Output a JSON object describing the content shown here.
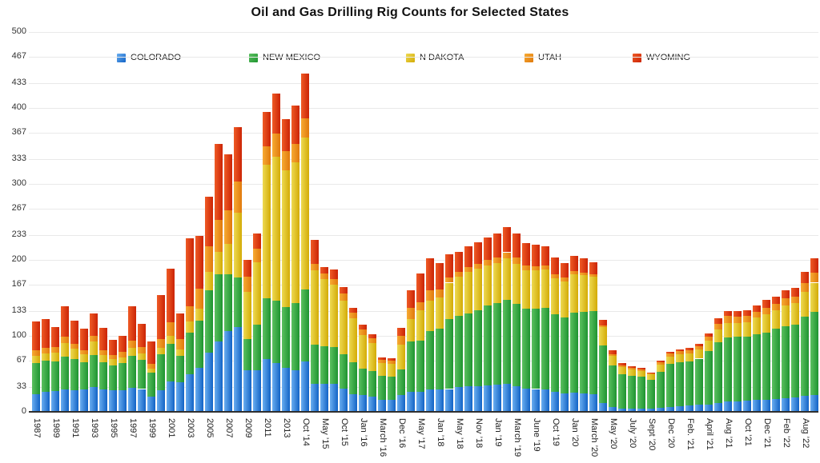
{
  "title": "Oil and Gas Drilling Rig Counts for Selected States",
  "chart_data": {
    "type": "bar",
    "stacked": true,
    "title": "Oil and Gas Drilling Rig Counts for Selected States",
    "grid": true,
    "legend_position": "top",
    "ylim": [
      0,
      500
    ],
    "y_ticks": [
      500,
      467,
      433,
      400,
      367,
      333,
      300,
      267,
      233,
      200,
      167,
      133,
      100,
      67,
      33,
      0
    ],
    "categories": [
      "1987",
      "",
      "1989",
      "",
      "1991",
      "",
      "1993",
      "",
      "1995",
      "",
      "1997",
      "",
      "1999",
      "",
      "2001",
      "",
      "2003",
      "",
      "2005",
      "",
      "2007",
      "",
      "2009",
      "",
      "2011",
      "",
      "2013",
      "",
      "Oct ’14",
      "",
      "May ’15",
      "",
      "Oct ’15",
      "",
      "Jan ’16",
      "",
      "March ’16",
      "",
      "Dec ’16",
      "",
      "May ’17",
      "",
      "Jan ’18",
      "",
      "May ’18",
      "",
      "Nov ’18",
      "",
      "Jan ’19",
      "",
      "March ’19",
      "",
      "June ’19",
      "",
      "Oct ’19",
      "",
      "Jan ’20",
      "",
      "March ’20",
      "",
      "May ’20",
      "",
      "July ’20",
      "",
      "Sept ’20",
      "",
      "Dec ’20",
      "",
      "Feb. ’21",
      "",
      "April ’21",
      "",
      "Aug ’21",
      "",
      "Oct ’21",
      "",
      "Dec ’21",
      "",
      "Feb ’22",
      "",
      "Aug ’22",
      ""
    ],
    "series": [
      {
        "name": "COLORADO",
        "color": "#1e79d8",
        "color_light": "#6aaef0",
        "color_dark": "#1263c6",
        "values": [
          23,
          26,
          27,
          29,
          28,
          30,
          33,
          30,
          28,
          28,
          32,
          30,
          20,
          28,
          40,
          39,
          49,
          58,
          78,
          93,
          106,
          112,
          55,
          55,
          70,
          64,
          58,
          55,
          66,
          37,
          37,
          37,
          31,
          23,
          22,
          20,
          16,
          16,
          22,
          26,
          26,
          29,
          29,
          30,
          33,
          34,
          34,
          35,
          36,
          37,
          34,
          31,
          30,
          29,
          26,
          24,
          25,
          24,
          23,
          12,
          6,
          4,
          4,
          4,
          4,
          5,
          6,
          7,
          8,
          9,
          10,
          12,
          14,
          14,
          15,
          16,
          16,
          17,
          18,
          19,
          21,
          22
        ]
      },
      {
        "name": "NEW MEXICO",
        "color": "#2f9e33",
        "color_light": "#5cc160",
        "color_dark": "#1e9430",
        "values": [
          41,
          41,
          39,
          44,
          41,
          35,
          42,
          35,
          33,
          36,
          42,
          38,
          32,
          48,
          50,
          35,
          55,
          62,
          82,
          88,
          75,
          65,
          41,
          60,
          80,
          82,
          80,
          88,
          95,
          51,
          49,
          48,
          45,
          42,
          35,
          34,
          31,
          30,
          34,
          67,
          68,
          77,
          80,
          92,
          93,
          95,
          100,
          105,
          107,
          110,
          108,
          105,
          106,
          108,
          102,
          100,
          106,
          108,
          110,
          75,
          55,
          45,
          43,
          42,
          38,
          48,
          57,
          58,
          58,
          61,
          70,
          80,
          84,
          85,
          84,
          86,
          88,
          92,
          95,
          96,
          104,
          110
        ]
      },
      {
        "name": "N DAKOTA",
        "color": "#ddbc13",
        "color_light": "#eeda52",
        "color_dark": "#d3ab06",
        "values": [
          10,
          10,
          12,
          18,
          14,
          11,
          18,
          10,
          8,
          8,
          10,
          9,
          5,
          8,
          10,
          8,
          15,
          16,
          24,
          30,
          40,
          85,
          62,
          82,
          175,
          190,
          180,
          185,
          200,
          98,
          89,
          82,
          70,
          58,
          44,
          37,
          17,
          17,
          32,
          29,
          40,
          40,
          42,
          48,
          52,
          55,
          54,
          53,
          53,
          55,
          53,
          50,
          50,
          50,
          48,
          48,
          50,
          48,
          45,
          25,
          13,
          10,
          9,
          8,
          7,
          9,
          10,
          11,
          11,
          12,
          14,
          16,
          19,
          18,
          19,
          22,
          24,
          25,
          27,
          28,
          33,
          38
        ]
      },
      {
        "name": "UTAH",
        "color": "#ee8b14",
        "color_light": "#f7ab33",
        "color_dark": "#e0790c",
        "values": [
          7,
          7,
          7,
          8,
          7,
          5,
          7,
          6,
          6,
          7,
          10,
          8,
          6,
          12,
          18,
          14,
          20,
          26,
          34,
          42,
          44,
          41,
          20,
          18,
          25,
          30,
          25,
          25,
          25,
          9,
          7,
          8,
          10,
          8,
          7,
          6,
          4,
          4,
          12,
          15,
          10,
          14,
          10,
          7,
          6,
          7,
          7,
          7,
          7,
          8,
          8,
          7,
          6,
          6,
          5,
          5,
          4,
          3,
          3,
          2,
          2,
          2,
          2,
          2,
          2,
          3,
          4,
          4,
          4,
          4,
          5,
          8,
          9,
          8,
          8,
          8,
          9,
          8,
          9,
          9,
          11,
          13
        ]
      },
      {
        "name": "WYOMING",
        "color": "#db2c0d",
        "color_light": "#ef5b26",
        "color_dark": "#cb2405",
        "values": [
          38,
          38,
          27,
          40,
          30,
          29,
          30,
          30,
          20,
          21,
          45,
          31,
          30,
          58,
          70,
          34,
          89,
          70,
          65,
          100,
          74,
          72,
          22,
          20,
          45,
          53,
          42,
          50,
          59,
          31,
          9,
          12,
          8,
          6,
          7,
          5,
          4,
          4,
          11,
          23,
          38,
          42,
          35,
          30,
          27,
          27,
          28,
          30,
          32,
          33,
          32,
          29,
          28,
          25,
          22,
          19,
          20,
          19,
          16,
          7,
          5,
          3,
          2,
          2,
          1,
          2,
          2,
          2,
          3,
          3,
          4,
          7,
          7,
          8,
          8,
          8,
          10,
          10,
          11,
          11,
          15,
          19
        ]
      }
    ]
  }
}
